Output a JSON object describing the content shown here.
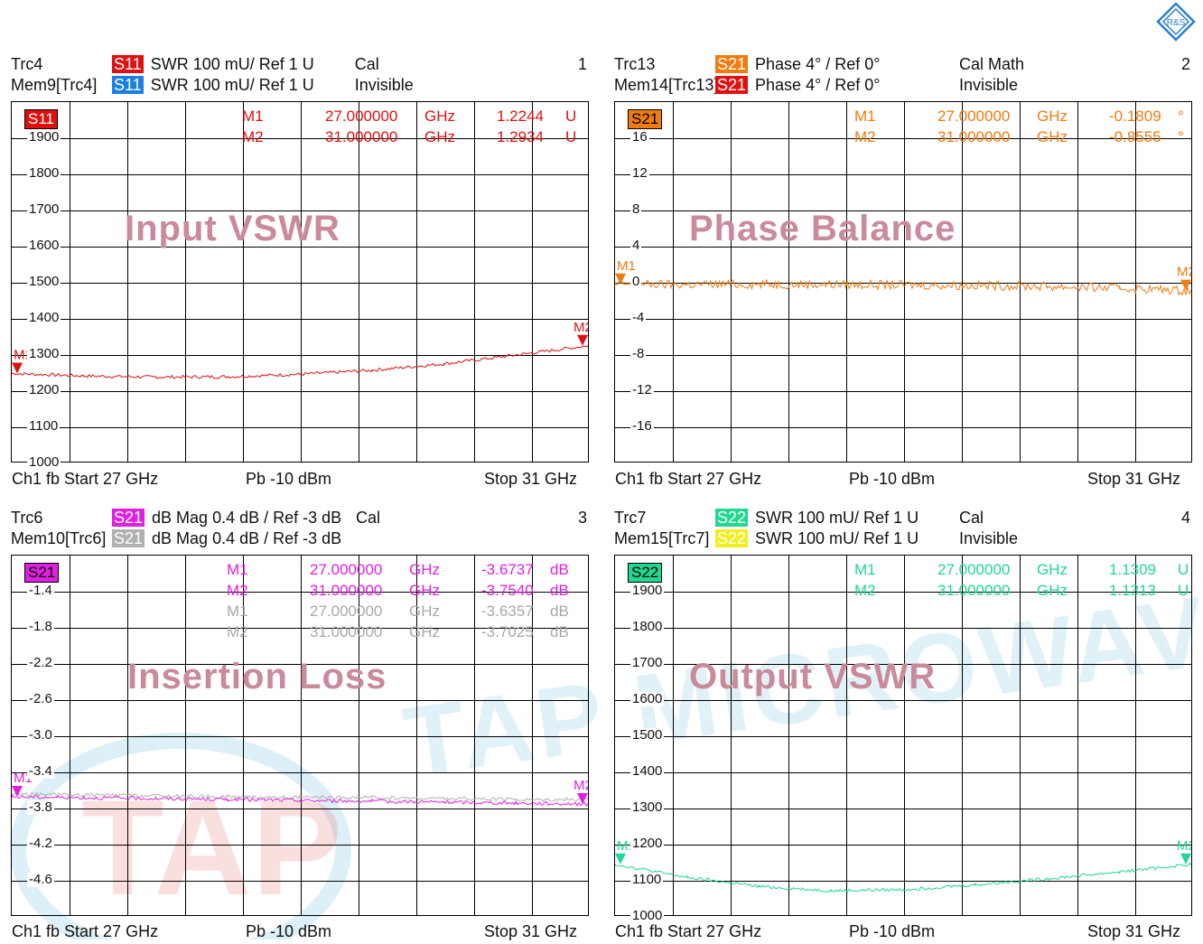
{
  "panels": [
    {
      "trace": "Trc4",
      "mem": "Mem9[Trc4]",
      "badge1": {
        "text": "S11",
        "color": "#e01010"
      },
      "badge2": {
        "text": "S11",
        "color": "#1a7fe0"
      },
      "fmt1": "SWR  100 mU/  Ref 1 U",
      "fmt2": "SWR  100 mU/  Ref 1 U",
      "cal1": "Cal",
      "cal2": "Invisible",
      "num": "1",
      "trc_badge": {
        "text": "S11",
        "bg": "#e01010",
        "fg": "#ffffff"
      },
      "title": "Input VSWR",
      "yticks": [
        "1900",
        "1800",
        "1700",
        "1600",
        "1500",
        "1400",
        "1300",
        "1200",
        "1100",
        "1000"
      ],
      "markers": [
        {
          "name": "M1",
          "freq": "27.000000",
          "unit": "GHz",
          "val": "1.2244",
          "vunit": "U"
        },
        {
          "name": "M2",
          "freq": "31.000000",
          "unit": "GHz",
          "val": "1.2934",
          "vunit": "U"
        }
      ],
      "marker_color": "#e01010",
      "footer_left": "Ch1  fb  Start  27 GHz",
      "footer_mid": "Pb   -10 dBm",
      "footer_right": "Stop  31 GHz"
    },
    {
      "trace": "Trc13",
      "mem": "Mem14[Trc13]",
      "badge1": {
        "text": "S21",
        "color": "#f07b10"
      },
      "badge2": {
        "text": "S21",
        "color": "#e01010"
      },
      "fmt1": "Phase  4° /  Ref 0°",
      "fmt2": "Phase  4° /  Ref 0°",
      "cal1": "Cal Math",
      "cal2": "Invisible",
      "num": "2",
      "trc_badge": {
        "text": "S21",
        "bg": "#f07b10",
        "fg": "#000000"
      },
      "title": "Phase Balance",
      "yticks": [
        "16",
        "12",
        "8",
        "4",
        "0",
        "-4",
        "-8",
        "-12",
        "-16"
      ],
      "markers": [
        {
          "name": "M1",
          "freq": "27.000000",
          "unit": "GHz",
          "val": "-0.1809",
          "vunit": "°"
        },
        {
          "name": "M2",
          "freq": "31.000000",
          "unit": "GHz",
          "val": "-0.8555",
          "vunit": "°"
        }
      ],
      "marker_color": "#f07b10",
      "footer_left": "Ch1  fb  Start  27 GHz",
      "footer_mid": "Pb   -10 dBm",
      "footer_right": "Stop  31 GHz"
    },
    {
      "trace": "Trc6",
      "mem": "Mem10[Trc6]",
      "badge1": {
        "text": "S21",
        "color": "#e020e0"
      },
      "badge2": {
        "text": "S21",
        "color": "#b0b0b0"
      },
      "fmt1": "dB Mag  0.4 dB /  Ref -3 dB",
      "fmt2": "dB Mag  0.4 dB /  Ref -3 dB",
      "cal1": "Cal",
      "cal2": "",
      "num": "3",
      "trc_badge": {
        "text": "S21",
        "bg": "#e020e0",
        "fg": "#000000"
      },
      "title": "Insertion Loss",
      "yticks": [
        "-1.4",
        "-1.8",
        "-2.2",
        "-2.6",
        "-3.0",
        "-3.4",
        "-3.8",
        "-4.2",
        "-4.6"
      ],
      "markers": [
        {
          "name": "M1",
          "freq": "27.000000",
          "unit": "GHz",
          "val": "-3.6737",
          "vunit": "dB"
        },
        {
          "name": "M2",
          "freq": "31.000000",
          "unit": "GHz",
          "val": "-3.7540",
          "vunit": "dB"
        },
        {
          "name": "M1",
          "freq": "27.000000",
          "unit": "GHz",
          "val": "-3.6357",
          "vunit": "dB"
        },
        {
          "name": "M2",
          "freq": "31.000000",
          "unit": "GHz",
          "val": "-3.7025",
          "vunit": "dB"
        }
      ],
      "marker_color": "#e020e0",
      "footer_left": "Ch1  fb  Start  27 GHz",
      "footer_mid": "Pb   -10 dBm",
      "footer_right": "Stop  31 GHz"
    },
    {
      "trace": "Trc7",
      "mem": "Mem15[Trc7]",
      "badge1": {
        "text": "S22",
        "color": "#20d890"
      },
      "badge2": {
        "text": "S22",
        "color": "#f0f020"
      },
      "fmt1": "SWR  100 mU/  Ref 1 U",
      "fmt2": "SWR  100 mU/  Ref 1 U",
      "cal1": "Cal",
      "cal2": "Invisible",
      "num": "4",
      "trc_badge": {
        "text": "S22",
        "bg": "#20d890",
        "fg": "#000000"
      },
      "title": "Output VSWR",
      "yticks": [
        "1900",
        "1800",
        "1700",
        "1600",
        "1500",
        "1400",
        "1300",
        "1200",
        "1100",
        "1000"
      ],
      "markers": [
        {
          "name": "M1",
          "freq": "27.000000",
          "unit": "GHz",
          "val": "1.1309",
          "vunit": "U"
        },
        {
          "name": "M2",
          "freq": "31.000000",
          "unit": "GHz",
          "val": "1.1313",
          "vunit": "U"
        }
      ],
      "marker_color": "#20d890",
      "footer_left": "Ch1  fb  Start  27 GHz",
      "footer_mid": "Pb   -10 dBm",
      "footer_right": "Stop  31 GHz"
    }
  ],
  "watermark": {
    "text": "TAP MICROWAV",
    "logo": "TAP"
  },
  "brand_logo": "R&S",
  "chart_data": [
    {
      "type": "line",
      "title": "Input VSWR",
      "xlim": [
        27,
        31
      ],
      "ylim": [
        1000,
        1900
      ],
      "yticks": [
        1900,
        1800,
        1700,
        1600,
        1500,
        1400,
        1300,
        1200,
        1100,
        1000
      ],
      "series": [
        {
          "name": "S11",
          "x": [
            27,
            27.5,
            28,
            28.5,
            29,
            29.5,
            30,
            30.5,
            31
          ],
          "values": [
            1224,
            1218,
            1215,
            1216,
            1222,
            1232,
            1248,
            1270,
            1293
          ]
        }
      ]
    },
    {
      "type": "line",
      "title": "Phase Balance",
      "xlim": [
        27,
        31
      ],
      "ylim": [
        -20,
        20
      ],
      "yticks": [
        16,
        12,
        8,
        4,
        0,
        -4,
        -8,
        -12,
        -16
      ],
      "series": [
        {
          "name": "S21",
          "x": [
            27,
            27.5,
            28,
            28.5,
            29,
            29.5,
            30,
            30.5,
            31
          ],
          "values": [
            -0.18,
            -0.2,
            -0.15,
            -0.2,
            -0.25,
            -0.3,
            -0.4,
            -0.6,
            -0.86
          ]
        }
      ]
    },
    {
      "type": "line",
      "title": "Insertion Loss",
      "xlim": [
        27,
        31
      ],
      "ylim": [
        -5.0,
        -1.0
      ],
      "yticks": [
        -1.4,
        -1.8,
        -2.2,
        -2.6,
        -3.0,
        -3.4,
        -3.8,
        -4.2,
        -4.6
      ],
      "series": [
        {
          "name": "S21",
          "x": [
            27,
            27.5,
            28,
            28.5,
            29,
            29.5,
            30,
            30.5,
            31
          ],
          "values": [
            -3.67,
            -3.68,
            -3.69,
            -3.7,
            -3.71,
            -3.72,
            -3.73,
            -3.74,
            -3.75
          ]
        },
        {
          "name": "S21",
          "x": [
            27,
            27.5,
            28,
            28.5,
            29,
            29.5,
            30,
            30.5,
            31
          ],
          "values": [
            -3.64,
            -3.65,
            -3.66,
            -3.67,
            -3.68,
            -3.68,
            -3.69,
            -3.7,
            -3.7
          ]
        }
      ]
    },
    {
      "type": "line",
      "title": "Output VSWR",
      "xlim": [
        27,
        31
      ],
      "ylim": [
        1000,
        1900
      ],
      "yticks": [
        1900,
        1800,
        1700,
        1600,
        1500,
        1400,
        1300,
        1200,
        1100,
        1000
      ],
      "series": [
        {
          "name": "S22",
          "x": [
            27,
            27.5,
            28,
            28.5,
            29,
            29.5,
            30,
            30.5,
            31
          ],
          "values": [
            1131,
            1098,
            1076,
            1065,
            1068,
            1080,
            1095,
            1112,
            1131
          ]
        }
      ]
    }
  ]
}
